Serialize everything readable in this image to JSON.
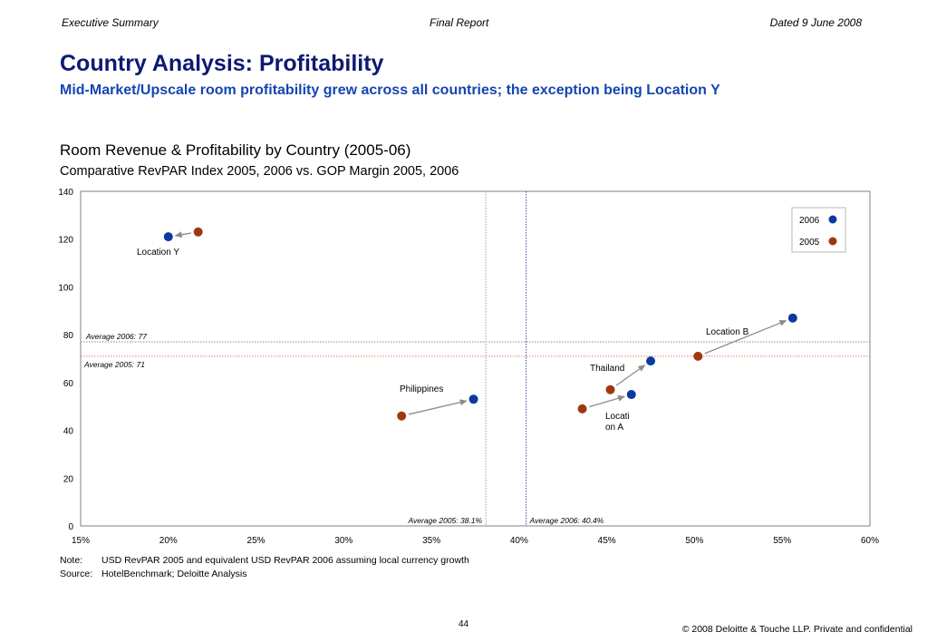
{
  "header": {
    "left": "Executive Summary",
    "center": "Final Report",
    "right": "Dated 9 June 2008"
  },
  "title": "Country Analysis: Profitability",
  "subtitle": "Mid-Market/Upscale room profitability grew across all countries; the exception being Location Y",
  "chart_data": {
    "type": "scatter",
    "title": "Room Revenue & Profitability by Country (2005-06)",
    "subtitle": "Comparative RevPAR Index 2005, 2006 vs. GOP Margin 2005, 2006",
    "xlabel": "",
    "ylabel": "",
    "xlim": [
      0.15,
      0.6
    ],
    "ylim": [
      0,
      140
    ],
    "x_ticks": [
      0.15,
      0.2,
      0.25,
      0.3,
      0.35,
      0.4,
      0.45,
      0.5,
      0.55,
      0.6
    ],
    "x_tick_labels": [
      "15%",
      "20%",
      "25%",
      "30%",
      "35%",
      "40%",
      "45%",
      "50%",
      "55%",
      "60%"
    ],
    "y_ticks": [
      0,
      20,
      40,
      60,
      80,
      100,
      120,
      140
    ],
    "y_tick_labels": [
      "0",
      "20",
      "40",
      "60",
      "80",
      "100",
      "120",
      "140"
    ],
    "grid": false,
    "legend_position": "top-right",
    "series": [
      {
        "name": "2006",
        "color": "#0a3aa0",
        "points": [
          {
            "label": "Location Y",
            "x": 0.2,
            "y": 121
          },
          {
            "label": "Philippines",
            "x": 0.374,
            "y": 53
          },
          {
            "label": "Thailand",
            "x": 0.475,
            "y": 69
          },
          {
            "label": "Location A",
            "x": 0.464,
            "y": 55
          },
          {
            "label": "Location B",
            "x": 0.556,
            "y": 87
          }
        ]
      },
      {
        "name": "2005",
        "color": "#a0380e",
        "points": [
          {
            "label": "Location Y",
            "x": 0.217,
            "y": 123
          },
          {
            "label": "Philippines",
            "x": 0.333,
            "y": 46
          },
          {
            "label": "Thailand",
            "x": 0.452,
            "y": 57
          },
          {
            "label": "Location A",
            "x": 0.436,
            "y": 49
          },
          {
            "label": "Location B",
            "x": 0.502,
            "y": 71
          }
        ]
      }
    ],
    "point_labels": [
      {
        "text": "Location Y"
      },
      {
        "text": "Philippines"
      },
      {
        "text": "Thailand"
      },
      {
        "text": "Locati"
      },
      {
        "text": "on A"
      },
      {
        "text": "Location B"
      }
    ],
    "reference_lines": [
      {
        "axis": "y",
        "value": 77,
        "label": "Average 2006: 77",
        "color": "#8a8a8a"
      },
      {
        "axis": "y",
        "value": 71,
        "label": "Average 2005: 71",
        "color": "#d98a6a"
      },
      {
        "axis": "x",
        "value": 0.381,
        "label": "Average 2005: 38.1%",
        "color": "#9aa0b8"
      },
      {
        "axis": "x",
        "value": 0.404,
        "label": "Average 2006: 40.4%",
        "color": "#3050a0"
      }
    ]
  },
  "notes": {
    "note_key": "Note:",
    "note_text": "USD RevPAR 2005 and equivalent USD RevPAR 2006 assuming local currency growth",
    "source_key": "Source:",
    "source_text": "HotelBenchmark; Deloitte Analysis"
  },
  "footer": {
    "page_number": "44",
    "copyright": "© 2008 Deloitte & Touche LLP. Private and confidential"
  }
}
